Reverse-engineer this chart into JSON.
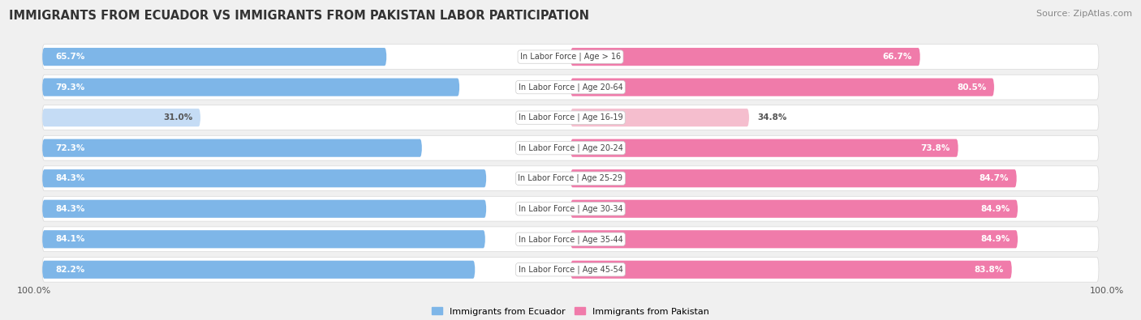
{
  "title": "IMMIGRANTS FROM ECUADOR VS IMMIGRANTS FROM PAKISTAN LABOR PARTICIPATION",
  "source": "Source: ZipAtlas.com",
  "categories": [
    "In Labor Force | Age > 16",
    "In Labor Force | Age 20-64",
    "In Labor Force | Age 16-19",
    "In Labor Force | Age 20-24",
    "In Labor Force | Age 25-29",
    "In Labor Force | Age 30-34",
    "In Labor Force | Age 35-44",
    "In Labor Force | Age 45-54"
  ],
  "ecuador_values": [
    65.7,
    79.3,
    31.0,
    72.3,
    84.3,
    84.3,
    84.1,
    82.2
  ],
  "pakistan_values": [
    66.7,
    80.5,
    34.8,
    73.8,
    84.7,
    84.9,
    84.9,
    83.8
  ],
  "ecuador_color": "#7EB6E8",
  "ecuador_color_light": "#C5DCF5",
  "pakistan_color": "#F07BAA",
  "pakistan_color_light": "#F5BECE",
  "background_color": "#f0f0f0",
  "row_bg_color": "#ffffff",
  "max_val": 100.0,
  "legend_ecuador": "Immigrants from Ecuador",
  "legend_pakistan": "Immigrants from Pakistan",
  "title_fontsize": 10.5,
  "source_fontsize": 8,
  "label_fontsize": 7.5,
  "category_fontsize": 7
}
